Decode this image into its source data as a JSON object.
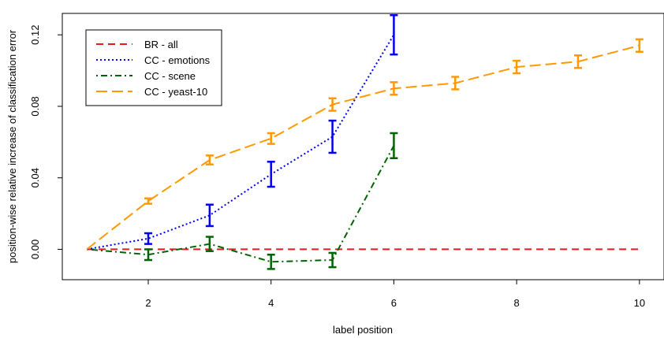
{
  "chart_data": {
    "type": "line",
    "title": "",
    "xlabel": "label position",
    "ylabel": "position-wise relative increase of classification error",
    "xlim": [
      0.6,
      10.4
    ],
    "ylim": [
      -0.017,
      0.132
    ],
    "x_ticks": [
      2,
      4,
      6,
      8,
      10
    ],
    "x_tick_labels": [
      "2",
      "4",
      "6",
      "8",
      "10"
    ],
    "y_ticks": [
      0,
      0.04,
      0.08,
      0.12
    ],
    "y_tick_labels": [
      "0.00",
      "0.04",
      "0.08",
      "0.12"
    ],
    "grid": false,
    "legend_position": "top-left",
    "series": [
      {
        "name": "BR - all",
        "color": "#e41a1c",
        "dash": "dashed",
        "x": [
          1,
          2,
          3,
          4,
          5,
          6,
          7,
          8,
          9,
          10
        ],
        "values": [
          0,
          0,
          0,
          0,
          0,
          0,
          0,
          0,
          0,
          0
        ],
        "error": null
      },
      {
        "name": "CC - emotions",
        "color": "#0000ee",
        "dash": "dotted",
        "x": [
          1,
          2,
          3,
          4,
          5,
          6
        ],
        "values": [
          0,
          0.006,
          0.019,
          0.042,
          0.063,
          0.12
        ],
        "error": [
          0,
          0.003,
          0.006,
          0.007,
          0.009,
          0.011
        ]
      },
      {
        "name": "CC - scene",
        "color": "#006400",
        "dash": "dotdash",
        "x": [
          1,
          2,
          3,
          4,
          5,
          6
        ],
        "values": [
          0,
          -0.003,
          0.003,
          -0.007,
          -0.006,
          0.058
        ],
        "error": [
          0,
          0.003,
          0.004,
          0.004,
          0.004,
          0.007
        ]
      },
      {
        "name": "CC - yeast-10",
        "color": "#ff9900",
        "dash": "longdash",
        "x": [
          1,
          2,
          3,
          4,
          5,
          6,
          7,
          8,
          9,
          10
        ],
        "values": [
          0,
          0.027,
          0.05,
          0.062,
          0.081,
          0.09,
          0.093,
          0.102,
          0.105,
          0.114
        ],
        "error": [
          0,
          0.0015,
          0.0025,
          0.003,
          0.0035,
          0.0035,
          0.0035,
          0.0035,
          0.0035,
          0.0035
        ]
      }
    ]
  }
}
